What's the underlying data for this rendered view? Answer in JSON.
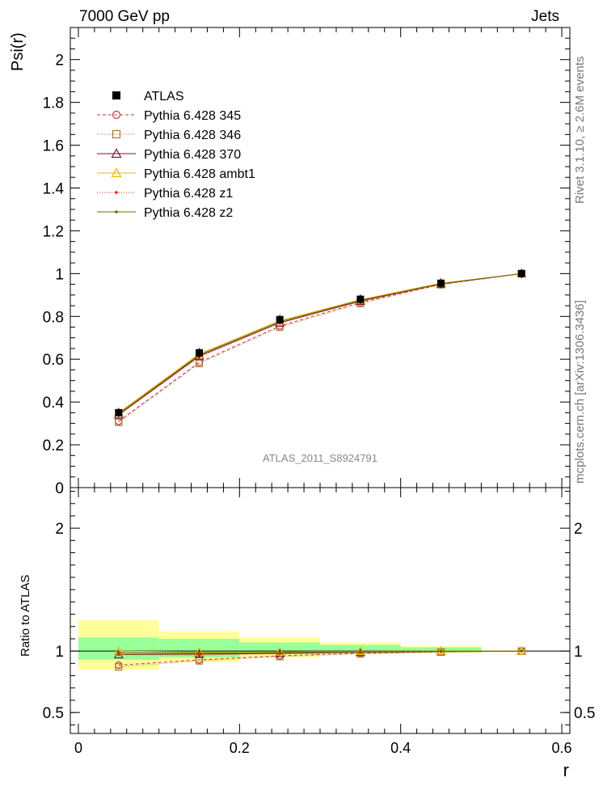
{
  "header": {
    "left": "7000 GeV pp",
    "right": "Jets"
  },
  "side_text": {
    "top": "Rivet 3.1.10, ≥ 2.6M events",
    "bottom": "mcplots.cern.ch [arXiv:1306.3436]"
  },
  "analysis_label": "ATLAS_2011_S8924791",
  "chart_data": {
    "type": "line",
    "main": {
      "ylabel": "Psi(r)",
      "ylim": [
        0,
        2.15
      ],
      "yticks": [
        "0",
        "0.2",
        "0.4",
        "0.6",
        "0.8",
        "1",
        "1.2",
        "1.4",
        "1.6",
        "1.8",
        "2"
      ]
    },
    "ratio": {
      "ylabel": "Ratio to ATLAS",
      "ylim": [
        0.33,
        2.33
      ],
      "yticks": [
        "0.5",
        "1",
        "2"
      ]
    },
    "xlabel": "r",
    "xlim": [
      -0.01,
      0.61
    ],
    "xticks": [
      "0",
      "0.2",
      "0.4",
      "0.6"
    ],
    "x": [
      0.05,
      0.15,
      0.25,
      0.35,
      0.45,
      0.55
    ],
    "data": {
      "name": "ATLAS",
      "values": [
        0.35,
        0.63,
        0.785,
        0.88,
        0.955,
        1.0
      ]
    },
    "bands": {
      "xlow": [
        0.0,
        0.1,
        0.2,
        0.3,
        0.4,
        0.5
      ],
      "xhigh": [
        0.1,
        0.2,
        0.3,
        0.4,
        0.5,
        0.6
      ],
      "yellow_lo": [
        0.85,
        0.91,
        0.95,
        0.975,
        0.985,
        1.0
      ],
      "yellow_hi": [
        1.25,
        1.16,
        1.11,
        1.07,
        1.04,
        1.0
      ],
      "green_lo": [
        0.93,
        0.95,
        0.975,
        0.985,
        0.99,
        1.0
      ],
      "green_hi": [
        1.11,
        1.1,
        1.07,
        1.05,
        1.03,
        1.0
      ]
    },
    "series": [
      {
        "name": "Pythia 6.428 345",
        "color": "#c0384a",
        "dash": "4,3",
        "marker": "circle",
        "values": [
          0.31,
          0.585,
          0.755,
          0.865,
          0.95,
          1.0
        ]
      },
      {
        "name": "Pythia 6.428 346",
        "color": "#a87a36",
        "dash": "1,2",
        "marker": "square",
        "values": [
          0.305,
          0.58,
          0.75,
          0.86,
          0.948,
          1.0
        ]
      },
      {
        "name": "Pythia 6.428 370",
        "color": "#7a1426",
        "dash": "",
        "marker": "triangle",
        "values": [
          0.34,
          0.615,
          0.77,
          0.872,
          0.952,
          1.0
        ]
      },
      {
        "name": "Pythia 6.428 ambt1",
        "color": "#e8b800",
        "dash": "",
        "marker": "triangle",
        "values": [
          0.35,
          0.625,
          0.78,
          0.878,
          0.955,
          1.0
        ]
      },
      {
        "name": "Pythia 6.428 z1",
        "color": "#e0200e",
        "dash": "1,2",
        "marker": "dot",
        "values": [
          0.34,
          0.61,
          0.77,
          0.87,
          0.95,
          1.0
        ]
      },
      {
        "name": "Pythia 6.428 z2",
        "color": "#6a6a00",
        "dash": "",
        "marker": "dot",
        "values": [
          0.345,
          0.62,
          0.775,
          0.875,
          0.953,
          1.0
        ]
      }
    ]
  }
}
